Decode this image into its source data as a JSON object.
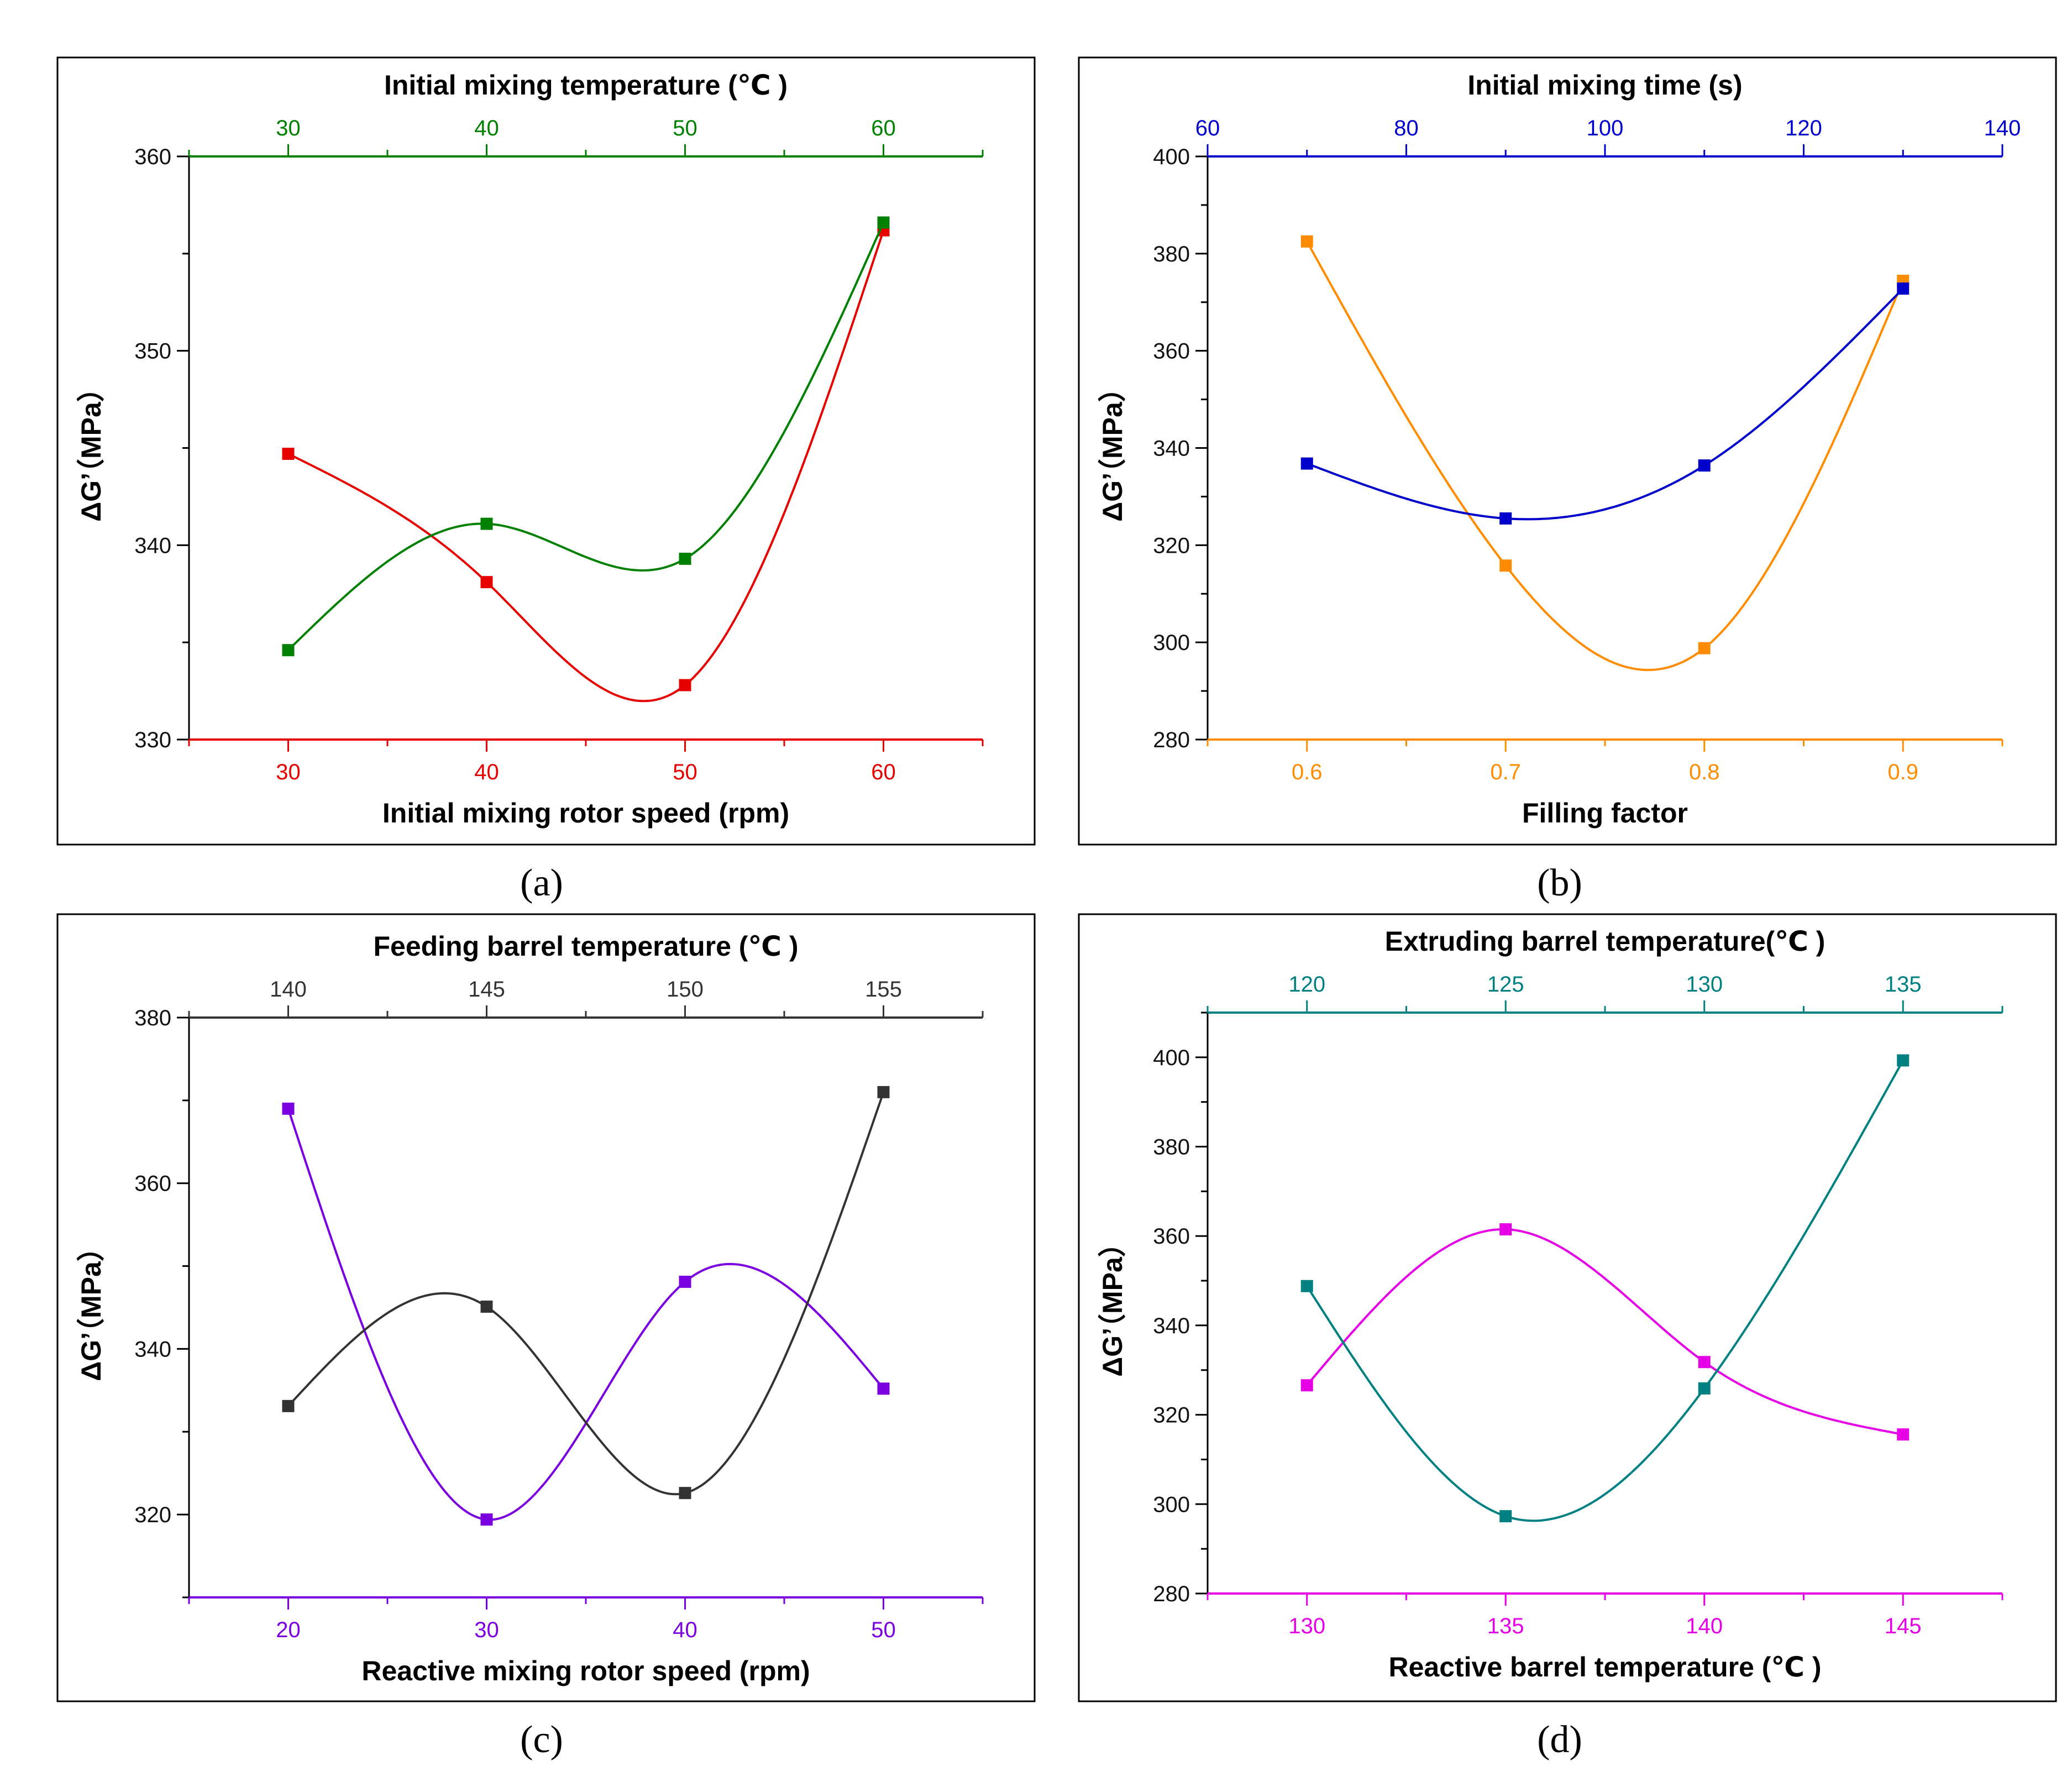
{
  "figure": {
    "captions": [
      "(a)",
      "(b)",
      "(c)",
      "(d)"
    ]
  },
  "chart_data": [
    {
      "type": "line",
      "panel": "a",
      "caption": "(a)",
      "ylabel": "ΔG’（MPa）",
      "ylim": [
        330,
        360
      ],
      "yticks": [
        330,
        340,
        350,
        360
      ],
      "bottom_axis": {
        "label": "Initial mixing rotor speed (rpm)",
        "lim": [
          25,
          65
        ],
        "ticks": [
          30,
          40,
          50,
          60
        ],
        "color": "#e60000"
      },
      "top_axis": {
        "label": "Initial mixing temperature (℃ )",
        "lim": [
          25,
          65
        ],
        "ticks": [
          30,
          40,
          50,
          60
        ],
        "color": "#008000"
      },
      "series": [
        {
          "name": "Initial mixing rotor speed",
          "axis": "bottom",
          "color": "#e60000",
          "x": [
            30,
            40,
            50,
            60
          ],
          "y": [
            344.7,
            338.1,
            332.8,
            356.2
          ]
        },
        {
          "name": "Initial mixing temperature",
          "axis": "top",
          "color": "#008000",
          "x": [
            30,
            40,
            50,
            60
          ],
          "y": [
            334.6,
            341.1,
            339.3,
            356.6
          ]
        }
      ]
    },
    {
      "type": "line",
      "panel": "b",
      "caption": "(b)",
      "ylabel": "ΔG’（MPa）",
      "ylim": [
        280,
        400
      ],
      "yticks": [
        280,
        300,
        320,
        340,
        360,
        380,
        400
      ],
      "bottom_axis": {
        "label": "Filling factor",
        "lim": [
          0.55,
          0.95
        ],
        "ticks": [
          0.6,
          0.7,
          0.8,
          0.9
        ],
        "color": "#ff8c00"
      },
      "top_axis": {
        "label": "Initial mixing time (s)",
        "lim": [
          60,
          140
        ],
        "ticks": [
          60,
          80,
          100,
          120,
          140
        ],
        "color": "#0000cc"
      },
      "series": [
        {
          "name": "Filling factor",
          "axis": "bottom",
          "color": "#ff8c00",
          "x": [
            0.6,
            0.7,
            0.8,
            0.9
          ],
          "y": [
            382.5,
            315.8,
            298.8,
            374.4
          ]
        },
        {
          "name": "Initial mixing time",
          "axis": "top",
          "color": "#0000cc",
          "x": [
            70,
            90,
            110,
            130
          ],
          "y": [
            336.8,
            325.5,
            336.4,
            372.8
          ]
        }
      ]
    },
    {
      "type": "line",
      "panel": "c",
      "caption": "(c)",
      "ylabel": "ΔG’（MPa）",
      "ylim": [
        310,
        380
      ],
      "yticks": [
        320,
        340,
        360,
        380
      ],
      "bottom_axis": {
        "label": "Reactive mixing rotor speed (rpm)",
        "lim": [
          15,
          55
        ],
        "ticks": [
          20,
          30,
          40,
          50
        ],
        "color": "#7b00e0"
      },
      "top_axis": {
        "label": "Feeding barrel temperature (℃ )",
        "lim": [
          137.5,
          157.5
        ],
        "ticks": [
          140,
          145,
          150,
          155
        ],
        "color": "#333333"
      },
      "series": [
        {
          "name": "Reactive mixing rotor speed",
          "axis": "bottom",
          "color": "#7b00e0",
          "x": [
            20,
            30,
            40,
            50
          ],
          "y": [
            369.0,
            319.4,
            348.1,
            335.2
          ]
        },
        {
          "name": "Feeding barrel temperature",
          "axis": "top",
          "color": "#333333",
          "x": [
            140,
            145,
            150,
            155
          ],
          "y": [
            333.1,
            345.1,
            322.6,
            371.0
          ]
        }
      ]
    },
    {
      "type": "line",
      "panel": "d",
      "caption": "(d)",
      "ylabel": "ΔG’（MPa）",
      "ylim": [
        280,
        410
      ],
      "yticks": [
        280,
        300,
        320,
        340,
        360,
        380,
        400
      ],
      "bottom_axis": {
        "label": "Reactive barrel temperature (℃ )",
        "lim": [
          127.5,
          147.5
        ],
        "ticks": [
          130,
          135,
          140,
          145
        ],
        "color": "#e600e6"
      },
      "top_axis": {
        "label": "Extruding barrel temperature(℃ )",
        "lim": [
          117.5,
          137.5
        ],
        "ticks": [
          120,
          125,
          130,
          135
        ],
        "color": "#008080"
      },
      "series": [
        {
          "name": "Reactive barrel temperature",
          "axis": "bottom",
          "color": "#e600e6",
          "x": [
            130,
            135,
            140,
            145
          ],
          "y": [
            326.6,
            361.5,
            331.8,
            315.6
          ]
        },
        {
          "name": "Extruding barrel temperature",
          "axis": "top",
          "color": "#008080",
          "x": [
            120,
            125,
            130,
            135
          ],
          "y": [
            348.8,
            297.3,
            325.9,
            399.3
          ]
        }
      ]
    }
  ]
}
